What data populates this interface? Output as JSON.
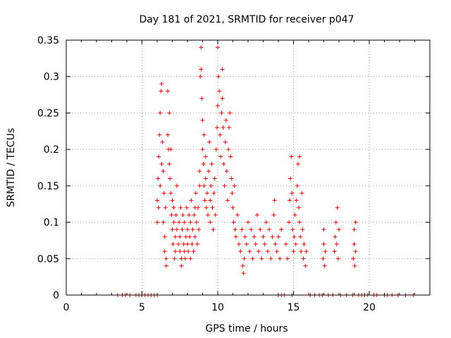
{
  "chart_data": {
    "type": "scatter",
    "title": "Day 181 of 2021, SRMTID for receiver p047",
    "xlabel": "GPS time / hours",
    "ylabel": "SRMTID / TECUs",
    "xlim": [
      0,
      24
    ],
    "ylim": [
      0,
      0.35
    ],
    "xticks": [
      0,
      5,
      10,
      15,
      20
    ],
    "xtick_labels": [
      "0",
      "5",
      "10",
      "15",
      "20"
    ],
    "yticks": [
      0,
      0.05,
      0.1,
      0.15,
      0.2,
      0.25,
      0.3,
      0.35
    ],
    "ytick_labels": [
      "0",
      "0.05",
      "0.1",
      "0.15",
      "0.2",
      "0.25",
      "0.3",
      "0.35"
    ],
    "grid": true,
    "marker": "+",
    "color": "#ff0000",
    "series": [
      {
        "name": "SRMTID",
        "points": [
          [
            6.0,
            0.1
          ],
          [
            6.0,
            0.13
          ],
          [
            6.05,
            0.16
          ],
          [
            6.1,
            0.19
          ],
          [
            6.1,
            0.12
          ],
          [
            6.15,
            0.22
          ],
          [
            6.2,
            0.25
          ],
          [
            6.2,
            0.15
          ],
          [
            6.25,
            0.28
          ],
          [
            6.3,
            0.29
          ],
          [
            6.3,
            0.18
          ],
          [
            6.35,
            0.21
          ],
          [
            6.4,
            0.17
          ],
          [
            6.4,
            0.1
          ],
          [
            6.45,
            0.14
          ],
          [
            6.5,
            0.08
          ],
          [
            6.5,
            0.06
          ],
          [
            6.55,
            0.12
          ],
          [
            6.6,
            0.05
          ],
          [
            6.6,
            0.04
          ],
          [
            6.7,
            0.28
          ],
          [
            6.7,
            0.22
          ],
          [
            6.75,
            0.2
          ],
          [
            6.8,
            0.18
          ],
          [
            6.8,
            0.25
          ],
          [
            6.85,
            0.16
          ],
          [
            6.9,
            0.14
          ],
          [
            6.9,
            0.2
          ],
          [
            6.95,
            0.11
          ],
          [
            7.0,
            0.13
          ],
          [
            7.0,
            0.09
          ],
          [
            7.05,
            0.07
          ],
          [
            7.1,
            0.1
          ],
          [
            7.1,
            0.12
          ],
          [
            7.15,
            0.05
          ],
          [
            7.2,
            0.08
          ],
          [
            7.2,
            0.06
          ],
          [
            7.25,
            0.11
          ],
          [
            7.3,
            0.09
          ],
          [
            7.3,
            0.15
          ],
          [
            7.4,
            0.07
          ],
          [
            7.45,
            0.1
          ],
          [
            7.5,
            0.06
          ],
          [
            7.5,
            0.08
          ],
          [
            7.55,
            0.12
          ],
          [
            7.6,
            0.05
          ],
          [
            7.6,
            0.04
          ],
          [
            7.65,
            0.09
          ],
          [
            7.7,
            0.11
          ],
          [
            7.75,
            0.07
          ],
          [
            7.8,
            0.06
          ],
          [
            7.8,
            0.1
          ],
          [
            7.85,
            0.05
          ],
          [
            7.9,
            0.08
          ],
          [
            7.95,
            0.12
          ],
          [
            8.0,
            0.07
          ],
          [
            8.0,
            0.09
          ],
          [
            8.05,
            0.06
          ],
          [
            8.1,
            0.11
          ],
          [
            8.15,
            0.08
          ],
          [
            8.2,
            0.05
          ],
          [
            8.2,
            0.1
          ],
          [
            8.25,
            0.13
          ],
          [
            8.3,
            0.07
          ],
          [
            8.35,
            0.09
          ],
          [
            8.4,
            0.06
          ],
          [
            8.45,
            0.11
          ],
          [
            8.5,
            0.12
          ],
          [
            8.5,
            0.08
          ],
          [
            8.55,
            0.14
          ],
          [
            8.6,
            0.1
          ],
          [
            8.65,
            0.07
          ],
          [
            8.7,
            0.12
          ],
          [
            8.75,
            0.09
          ],
          [
            8.8,
            0.15
          ],
          [
            8.8,
            0.17
          ],
          [
            8.85,
            0.3
          ],
          [
            8.9,
            0.34
          ],
          [
            8.9,
            0.31
          ],
          [
            8.95,
            0.27
          ],
          [
            9.0,
            0.24
          ],
          [
            9.0,
            0.2
          ],
          [
            9.05,
            0.18
          ],
          [
            9.1,
            0.22
          ],
          [
            9.1,
            0.15
          ],
          [
            9.15,
            0.13
          ],
          [
            9.2,
            0.19
          ],
          [
            9.2,
            0.16
          ],
          [
            9.25,
            0.12
          ],
          [
            9.3,
            0.14
          ],
          [
            9.35,
            0.11
          ],
          [
            9.4,
            0.17
          ],
          [
            9.45,
            0.21
          ],
          [
            9.5,
            0.13
          ],
          [
            9.5,
            0.1
          ],
          [
            9.55,
            0.15
          ],
          [
            9.6,
            0.18
          ],
          [
            9.65,
            0.12
          ],
          [
            9.7,
            0.09
          ],
          [
            9.75,
            0.14
          ],
          [
            9.8,
            0.16
          ],
          [
            9.85,
            0.11
          ],
          [
            9.9,
            0.2
          ],
          [
            9.95,
            0.23
          ],
          [
            10.0,
            0.26
          ],
          [
            10.0,
            0.34
          ],
          [
            10.05,
            0.3
          ],
          [
            10.1,
            0.28
          ],
          [
            10.15,
            0.22
          ],
          [
            10.2,
            0.19
          ],
          [
            10.25,
            0.25
          ],
          [
            10.3,
            0.31
          ],
          [
            10.3,
            0.27
          ],
          [
            10.35,
            0.23
          ],
          [
            10.4,
            0.18
          ],
          [
            10.45,
            0.15
          ],
          [
            10.5,
            0.21
          ],
          [
            10.55,
            0.24
          ],
          [
            10.6,
            0.17
          ],
          [
            10.65,
            0.13
          ],
          [
            10.7,
            0.2
          ],
          [
            10.75,
            0.23
          ],
          [
            10.8,
            0.25
          ],
          [
            10.85,
            0.19
          ],
          [
            10.9,
            0.16
          ],
          [
            10.95,
            0.14
          ],
          [
            11.0,
            0.12
          ],
          [
            11.05,
            0.1
          ],
          [
            11.1,
            0.15
          ],
          [
            11.15,
            0.09
          ],
          [
            11.2,
            0.08
          ],
          [
            11.3,
            0.11
          ],
          [
            11.4,
            0.07
          ],
          [
            11.5,
            0.06
          ],
          [
            11.6,
            0.09
          ],
          [
            11.65,
            0.04
          ],
          [
            11.7,
            0.03
          ],
          [
            11.75,
            0.05
          ],
          [
            11.8,
            0.08
          ],
          [
            11.9,
            0.07
          ],
          [
            12.0,
            0.1
          ],
          [
            12.1,
            0.06
          ],
          [
            12.2,
            0.09
          ],
          [
            12.3,
            0.05
          ],
          [
            12.4,
            0.08
          ],
          [
            12.5,
            0.07
          ],
          [
            12.6,
            0.11
          ],
          [
            12.7,
            0.06
          ],
          [
            12.8,
            0.09
          ],
          [
            12.9,
            0.05
          ],
          [
            13.0,
            0.08
          ],
          [
            13.1,
            0.07
          ],
          [
            13.2,
            0.1
          ],
          [
            13.3,
            0.06
          ],
          [
            13.4,
            0.09
          ],
          [
            13.5,
            0.05
          ],
          [
            13.6,
            0.08
          ],
          [
            13.7,
            0.11
          ],
          [
            13.75,
            0.13
          ],
          [
            13.8,
            0.07
          ],
          [
            13.9,
            0.06
          ],
          [
            14.0,
            0.08
          ],
          [
            14.1,
            0.05
          ],
          [
            14.2,
            0.09
          ],
          [
            14.5,
            0.07
          ],
          [
            14.6,
            0.05
          ],
          [
            14.7,
            0.1
          ],
          [
            14.75,
            0.13
          ],
          [
            14.8,
            0.16
          ],
          [
            14.85,
            0.19
          ],
          [
            14.9,
            0.14
          ],
          [
            14.95,
            0.09
          ],
          [
            15.0,
            0.06
          ],
          [
            15.05,
            0.08
          ],
          [
            15.1,
            0.11
          ],
          [
            15.15,
            0.07
          ],
          [
            15.2,
            0.13
          ],
          [
            15.25,
            0.15
          ],
          [
            15.3,
            0.18
          ],
          [
            15.35,
            0.12
          ],
          [
            15.4,
            0.19
          ],
          [
            15.4,
            0.1
          ],
          [
            15.45,
            0.08
          ],
          [
            15.5,
            0.06
          ],
          [
            15.55,
            0.14
          ],
          [
            15.6,
            0.09
          ],
          [
            15.65,
            0.05
          ],
          [
            15.7,
            0.07
          ],
          [
            15.8,
            0.04
          ],
          [
            15.85,
            0.06
          ],
          [
            16.95,
            0.05
          ],
          [
            17.0,
            0.07
          ],
          [
            17.0,
            0.09
          ],
          [
            17.05,
            0.04
          ],
          [
            17.1,
            0.06
          ],
          [
            17.7,
            0.06
          ],
          [
            17.75,
            0.08
          ],
          [
            17.8,
            0.1
          ],
          [
            17.85,
            0.07
          ],
          [
            17.9,
            0.12
          ],
          [
            17.95,
            0.05
          ],
          [
            18.0,
            0.09
          ],
          [
            18.95,
            0.05
          ],
          [
            19.0,
            0.07
          ],
          [
            19.0,
            0.09
          ],
          [
            19.05,
            0.04
          ],
          [
            19.1,
            0.1
          ],
          [
            19.1,
            0.06
          ],
          [
            3.4,
            0.0
          ],
          [
            3.7,
            0.0
          ],
          [
            3.9,
            0.0
          ],
          [
            4.2,
            0.0
          ],
          [
            4.6,
            0.0
          ],
          [
            4.8,
            0.0
          ],
          [
            5.0,
            0.0
          ],
          [
            5.2,
            0.0
          ],
          [
            5.4,
            0.0
          ],
          [
            5.6,
            0.0
          ],
          [
            5.8,
            0.0
          ],
          [
            6.0,
            0.0
          ],
          [
            14.0,
            0.0
          ],
          [
            14.2,
            0.0
          ],
          [
            14.4,
            0.0
          ],
          [
            14.9,
            0.0
          ],
          [
            16.1,
            0.0
          ],
          [
            16.4,
            0.0
          ],
          [
            16.7,
            0.0
          ],
          [
            16.9,
            0.0
          ],
          [
            17.3,
            0.0
          ],
          [
            17.6,
            0.0
          ],
          [
            18.1,
            0.0
          ],
          [
            18.5,
            0.0
          ],
          [
            18.9,
            0.0
          ],
          [
            19.3,
            0.0
          ],
          [
            19.5,
            0.0
          ],
          [
            19.7,
            0.0
          ],
          [
            19.9,
            0.0
          ],
          [
            20.3,
            0.0
          ],
          [
            20.5,
            0.0
          ],
          [
            21.0,
            0.0
          ],
          [
            21.2,
            0.0
          ],
          [
            21.5,
            0.0
          ],
          [
            21.9,
            0.0
          ],
          [
            22.4,
            0.0
          ],
          [
            22.9,
            0.0
          ]
        ]
      }
    ]
  }
}
